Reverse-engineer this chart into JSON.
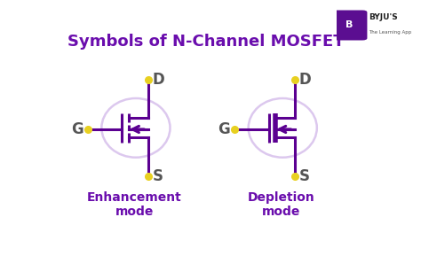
{
  "title": "Symbols of N-Channel MOSFET",
  "title_color": "#6a0dad",
  "title_fontsize": 13,
  "bg_color": "#ffffff",
  "mosfet_color": "#5b0091",
  "circle_color": "#dcc8ee",
  "dot_color": "#e8d020",
  "label_color": "#555555",
  "label_fontsize": 12,
  "caption_color": "#6a0dad",
  "caption_fontsize": 10,
  "enhancement_label": "Enhancement\nmode",
  "depletion_label": "Depletion\nmode"
}
